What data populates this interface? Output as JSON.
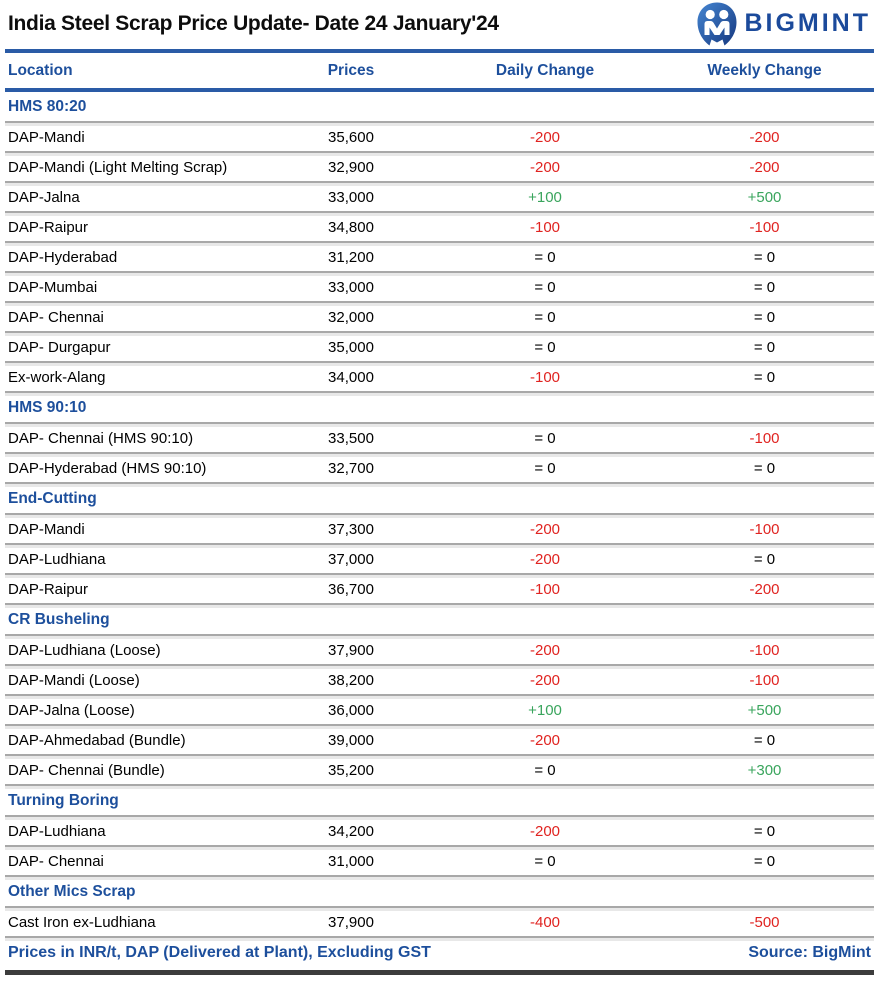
{
  "header": {
    "title": "India Steel Scrap Price Update- Date 24 January'24",
    "brand": "BIGMINT"
  },
  "columns": [
    "Location",
    "Prices",
    "Daily Change",
    "Weekly Change"
  ],
  "sections": [
    {
      "name": "HMS 80:20",
      "rows": [
        {
          "location": "DAP-Mandi",
          "price": "35,600",
          "daily": "-200",
          "weekly": "-200"
        },
        {
          "location": "DAP-Mandi (Light Melting Scrap)",
          "price": "32,900",
          "daily": "-200",
          "weekly": "-200"
        },
        {
          "location": "DAP-Jalna",
          "price": "33,000",
          "daily": "+100",
          "weekly": "+500"
        },
        {
          "location": "DAP-Raipur",
          "price": "34,800",
          "daily": "-100",
          "weekly": "-100"
        },
        {
          "location": "DAP-Hyderabad",
          "price": "31,200",
          "daily": "= 0",
          "weekly": "= 0"
        },
        {
          "location": "DAP-Mumbai",
          "price": "33,000",
          "daily": "= 0",
          "weekly": "= 0"
        },
        {
          "location": "DAP- Chennai",
          "price": "32,000",
          "daily": "= 0",
          "weekly": "= 0"
        },
        {
          "location": "DAP- Durgapur",
          "price": "35,000",
          "daily": "= 0",
          "weekly": "= 0"
        },
        {
          "location": "Ex-work-Alang",
          "price": "34,000",
          "daily": "-100",
          "weekly": "= 0"
        }
      ]
    },
    {
      "name": "HMS 90:10",
      "rows": [
        {
          "location": "DAP- Chennai  (HMS 90:10)",
          "price": "33,500",
          "daily": "= 0",
          "weekly": "-100"
        },
        {
          "location": "DAP-Hyderabad (HMS 90:10)",
          "price": "32,700",
          "daily": "= 0",
          "weekly": "= 0"
        }
      ]
    },
    {
      "name": "End-Cutting",
      "rows": [
        {
          "location": "DAP-Mandi",
          "price": "37,300",
          "daily": "-200",
          "weekly": "-100"
        },
        {
          "location": "DAP-Ludhiana",
          "price": "37,000",
          "daily": "-200",
          "weekly": "= 0"
        },
        {
          "location": "DAP-Raipur",
          "price": "36,700",
          "daily": "-100",
          "weekly": "-200"
        }
      ]
    },
    {
      "name": "CR Busheling",
      "rows": [
        {
          "location": "DAP-Ludhiana (Loose)",
          "price": "37,900",
          "daily": "-200",
          "weekly": "-100"
        },
        {
          "location": "DAP-Mandi (Loose)",
          "price": "38,200",
          "daily": "-200",
          "weekly": "-100"
        },
        {
          "location": "DAP-Jalna (Loose)",
          "price": "36,000",
          "daily": "+100",
          "weekly": "+500"
        },
        {
          "location": "DAP-Ahmedabad (Bundle)",
          "price": "39,000",
          "daily": "-200",
          "weekly": "= 0"
        },
        {
          "location": "DAP- Chennai (Bundle)",
          "price": "35,200",
          "daily": "= 0",
          "weekly": "+300"
        }
      ]
    },
    {
      "name": "Turning Boring",
      "rows": [
        {
          "location": "DAP-Ludhiana",
          "price": "34,200",
          "daily": "-200",
          "weekly": "= 0"
        },
        {
          "location": "DAP- Chennai",
          "price": "31,000",
          "daily": "= 0",
          "weekly": "= 0"
        }
      ]
    },
    {
      "name": "Other Mics Scrap",
      "rows": [
        {
          "location": "Cast Iron ex-Ludhiana",
          "price": "37,900",
          "daily": "-400",
          "weekly": "-500"
        }
      ]
    }
  ],
  "footer": {
    "note": "Prices in INR/t, DAP (Delivered at Plant), Excluding GST",
    "source": "Source: BigMint"
  },
  "colors": {
    "accent_blue": "#1d4f9c",
    "rule_blue": "#2a5ba6",
    "negative_red": "#e02320",
    "positive_green": "#3aa55d",
    "separator_gray": "#a8a8a8",
    "bottom_bar": "#3c3c3c"
  }
}
